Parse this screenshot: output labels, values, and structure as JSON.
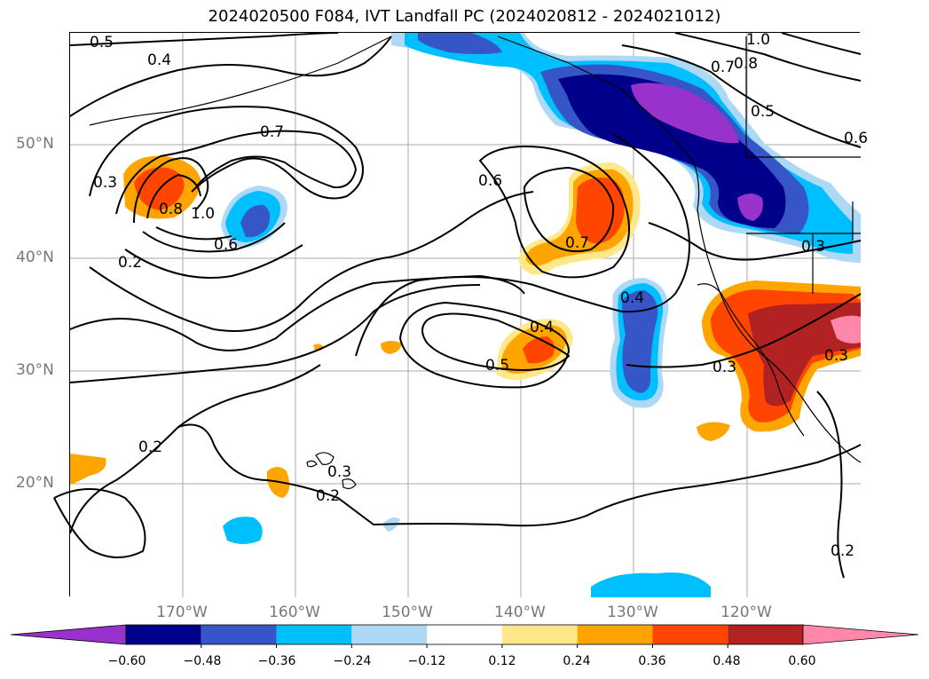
{
  "title": "2024020500 F084, IVT Landfall PC (2024020812 - 2024021012)",
  "latitude_labels": [
    "50°N",
    "40°N",
    "30°N",
    "20°N"
  ],
  "longitude_labels": [
    "170°W",
    "160°W",
    "150°W",
    "140°W",
    "130°W",
    "120°W"
  ],
  "colorbar": {
    "ticks": [
      "−0.60",
      "−0.48",
      "−0.36",
      "−0.24",
      "−0.12",
      "0.12",
      "0.24",
      "0.36",
      "0.48",
      "0.60"
    ],
    "colors": [
      "#9932cc",
      "#00008b",
      "#3656c8",
      "#00bfff",
      "#add8f6",
      "#ffffff",
      "#ffe88a",
      "#ffa500",
      "#ff4500",
      "#b22222",
      "#ff88aa"
    ]
  },
  "contour_labels": [
    {
      "id": "c1",
      "text": "0.5"
    },
    {
      "id": "c2",
      "text": "0.4"
    },
    {
      "id": "c3",
      "text": "1.0"
    },
    {
      "id": "c4",
      "text": "0.8"
    },
    {
      "id": "c5",
      "text": "0.7"
    },
    {
      "id": "c6",
      "text": "0.7"
    },
    {
      "id": "c7",
      "text": "0.3"
    },
    {
      "id": "c8",
      "text": "0.8"
    },
    {
      "id": "c9",
      "text": "1.0"
    },
    {
      "id": "c10",
      "text": "0.6"
    },
    {
      "id": "c11",
      "text": "0.2"
    },
    {
      "id": "c12",
      "text": "0.6"
    },
    {
      "id": "c13",
      "text": "0.7"
    },
    {
      "id": "c14",
      "text": "0.5"
    },
    {
      "id": "c15",
      "text": "0.4"
    },
    {
      "id": "c16",
      "text": "0.5"
    },
    {
      "id": "c17",
      "text": "0.4"
    },
    {
      "id": "c18",
      "text": "0.3"
    },
    {
      "id": "c19",
      "text": "0.3"
    },
    {
      "id": "c20",
      "text": "0.2"
    },
    {
      "id": "c21",
      "text": "0.3"
    },
    {
      "id": "c22",
      "text": "0.2"
    },
    {
      "id": "c23",
      "text": "0.3"
    },
    {
      "id": "c24",
      "text": "0.2"
    },
    {
      "id": "c25",
      "text": "0.6"
    }
  ]
}
